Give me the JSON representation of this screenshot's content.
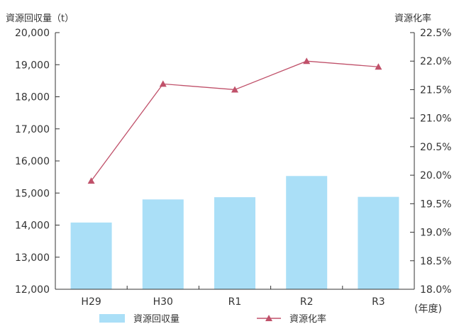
{
  "chart_data": {
    "type": "bar",
    "categories": [
      "H29",
      "H30",
      "R1",
      "R2",
      "R3"
    ],
    "series": [
      {
        "name": "資源回収量",
        "type": "bar",
        "axis": "left",
        "values": [
          14080,
          14800,
          14870,
          15530,
          14880
        ],
        "color": "#aadff7"
      },
      {
        "name": "資源化率",
        "type": "line",
        "axis": "right",
        "values": [
          19.9,
          21.6,
          21.5,
          22.0,
          21.9
        ],
        "color": "#c0516a"
      }
    ],
    "y_left": {
      "label": "資源回収量（t）",
      "range": [
        12000,
        20000
      ],
      "ticks": [
        "12,000",
        "13,000",
        "14,000",
        "15,000",
        "16,000",
        "17,000",
        "18,000",
        "19,000",
        "20,000"
      ]
    },
    "y_right": {
      "label": "資源化率",
      "range": [
        18.0,
        22.5
      ],
      "ticks": [
        "18.0%",
        "18.5%",
        "19.0%",
        "19.5%",
        "20.0%",
        "20.5%",
        "21.0%",
        "21.5%",
        "22.0%",
        "22.5%"
      ]
    },
    "x_unit": "(年度)",
    "grid": false,
    "legend_position": "bottom"
  }
}
